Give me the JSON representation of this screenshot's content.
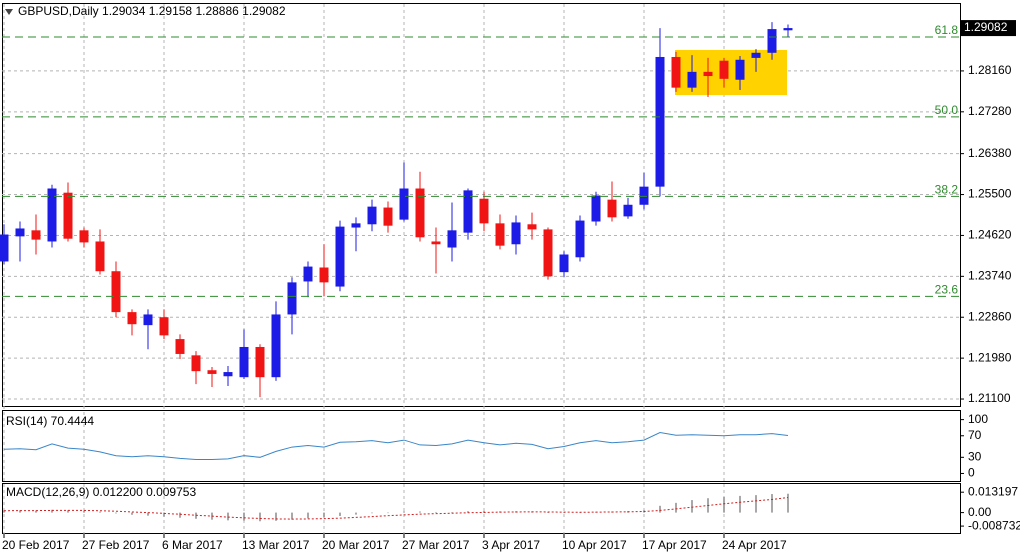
{
  "chart_data": [
    {
      "type": "candlestick",
      "title": "GBPUSD,Daily  1.29034 1.29158 1.28886 1.29082",
      "categories": [
        "20 Feb 2017",
        null,
        null,
        null,
        null,
        "27 Feb 2017",
        null,
        null,
        null,
        null,
        "6 Mar 2017",
        null,
        null,
        null,
        null,
        "13 Mar 2017",
        null,
        null,
        null,
        null,
        "20 Mar 2017",
        null,
        null,
        null,
        null,
        "27 Mar 2017",
        null,
        null,
        null,
        null,
        "3 Apr 2017",
        null,
        null,
        null,
        null,
        "10 Apr 2017",
        null,
        null,
        null,
        null,
        "17 Apr 2017",
        null,
        null,
        null,
        null,
        "24 Apr 2017",
        null,
        null,
        null,
        null
      ],
      "open": [
        1.2406,
        1.246,
        1.2473,
        1.2449,
        1.2554,
        1.2473,
        1.2449,
        1.2385,
        1.2297,
        1.2269,
        1.2286,
        1.2239,
        1.2204,
        1.2172,
        1.2159,
        1.2157,
        1.2222,
        1.2157,
        1.2292,
        1.2363,
        1.2393,
        1.2352,
        1.2479,
        1.2486,
        1.2522,
        1.2496,
        1.2563,
        1.2449,
        1.2436,
        1.2468,
        1.2541,
        1.2488,
        1.2443,
        1.2486,
        1.2475,
        1.2383,
        1.2415,
        1.2492,
        1.2539,
        1.2503,
        1.2528,
        1.2567,
        1.2846,
        1.278,
        1.2814,
        1.2838,
        1.2797,
        1.2844,
        1.2855,
        1.29034
      ],
      "high": [
        1.2486,
        1.2492,
        1.2507,
        1.2571,
        1.2576,
        1.2479,
        1.2475,
        1.2406,
        1.2303,
        1.2303,
        1.2303,
        1.2249,
        1.2213,
        1.2179,
        1.2181,
        1.226,
        1.2228,
        1.232,
        1.2372,
        1.2406,
        1.2443,
        1.2494,
        1.2501,
        1.2539,
        1.2535,
        1.2619,
        1.2599,
        1.2479,
        1.2533,
        1.2563,
        1.2556,
        1.2507,
        1.2505,
        1.2511,
        1.2479,
        1.2428,
        1.2505,
        1.2556,
        1.2578,
        1.2543,
        1.2597,
        1.2908,
        1.2857,
        1.285,
        1.2844,
        1.2844,
        1.2848,
        1.2863,
        1.2921,
        1.29158
      ],
      "low": [
        1.24,
        1.2406,
        1.2421,
        1.2436,
        1.2449,
        1.2436,
        1.2378,
        1.2286,
        1.2247,
        1.2217,
        1.2239,
        1.2196,
        1.2142,
        1.2136,
        1.2138,
        1.2153,
        1.2114,
        1.2149,
        1.2249,
        1.2329,
        1.2331,
        1.2342,
        1.2428,
        1.2471,
        1.2468,
        1.2492,
        1.2449,
        1.238,
        1.2406,
        1.2453,
        1.2471,
        1.2432,
        1.2421,
        1.2453,
        1.2367,
        1.2372,
        1.2406,
        1.2483,
        1.2492,
        1.2498,
        1.2518,
        1.2546,
        1.2771,
        1.2771,
        1.276,
        1.278,
        1.2775,
        1.2814,
        1.284,
        1.28886
      ],
      "close": [
        1.2464,
        1.2477,
        1.2453,
        1.2563,
        1.2455,
        1.2447,
        1.2385,
        1.2297,
        1.2271,
        1.2292,
        1.2247,
        1.2207,
        1.217,
        1.2164,
        1.2168,
        1.2222,
        1.2157,
        1.2292,
        1.2361,
        1.2395,
        1.2361,
        1.2481,
        1.2488,
        1.2524,
        1.2483,
        1.2563,
        1.2458,
        1.2443,
        1.2473,
        1.2559,
        1.2488,
        1.244,
        1.249,
        1.2475,
        1.2374,
        1.2421,
        1.2494,
        1.2548,
        1.2501,
        1.2528,
        1.2567,
        1.2846,
        1.278,
        1.2814,
        1.2805,
        1.2799,
        1.284,
        1.2855,
        1.2906,
        1.29082
      ],
      "up_color": "#1c1ce6",
      "down_color": "#f01414",
      "ylim": [
        1.2095,
        1.296
      ],
      "yticks": [
        {
          "value": 1.2816,
          "label": "1.28160"
        },
        {
          "value": 1.2728,
          "label": "1.27280"
        },
        {
          "value": 1.2638,
          "label": "1.26380"
        },
        {
          "value": 1.255,
          "label": "1.25500"
        },
        {
          "value": 1.2462,
          "label": "1.24620"
        },
        {
          "value": 1.2374,
          "label": "1.23740"
        },
        {
          "value": 1.2286,
          "label": "1.22860"
        },
        {
          "value": 1.2198,
          "label": "1.21980"
        },
        {
          "value": 1.211,
          "label": "1.21100"
        }
      ],
      "grid": true,
      "fib_levels": [
        {
          "label": "61.8",
          "value": 1.2889
        },
        {
          "label": "50.0",
          "value": 1.2717
        },
        {
          "label": "38.2",
          "value": 1.2546
        },
        {
          "label": "23.6",
          "value": 1.2331
        }
      ],
      "fib_color": "#2e8b2e"
    },
    {
      "type": "line",
      "title": "RSI(14) 70.4444",
      "values": [
        45,
        46,
        44,
        55,
        47,
        45,
        40,
        33,
        31,
        33,
        31,
        28,
        26,
        26,
        27,
        33,
        30,
        41,
        49,
        52,
        49,
        58,
        59,
        61,
        57,
        62,
        53,
        52,
        55,
        62,
        57,
        53,
        56,
        54,
        46,
        50,
        57,
        61,
        57,
        59,
        62,
        76,
        71,
        72,
        71,
        70,
        72,
        72,
        74,
        70.4444
      ],
      "color": "#3a86c8",
      "ylim": [
        -14,
        116
      ],
      "yticks": [
        100,
        70,
        30,
        0
      ]
    },
    {
      "type": "macd",
      "title": "MACD(12,26,9) 0.012200 0.009753",
      "values": [
        0.0015,
        0.0015,
        0.0013,
        0.0018,
        0.0015,
        0.0012,
        0.0006,
        -0.0005,
        -0.0014,
        -0.002,
        -0.0026,
        -0.0033,
        -0.004,
        -0.0046,
        -0.005,
        -0.0052,
        -0.0056,
        -0.0053,
        -0.0045,
        -0.0037,
        -0.0032,
        -0.0022,
        -0.0013,
        -0.0004,
        0,
        0.0008,
        0.0007,
        0.0004,
        0.0003,
        0.0009,
        0.001,
        0.0008,
        0.0009,
        0.0008,
        0.0001,
        -0.0003,
        0,
        0.0005,
        0.0007,
        0.001,
        0.0015,
        0.0044,
        0.0063,
        0.0081,
        0.0093,
        0.0101,
        0.0108,
        0.0113,
        0.012,
        0.0122
      ],
      "signal": [
        0.0012,
        0.0013,
        0.0013,
        0.0014,
        0.0014,
        0.0014,
        0.0012,
        0.0009,
        0.0004,
        0,
        -0.0005,
        -0.0011,
        -0.0017,
        -0.0023,
        -0.0029,
        -0.0034,
        -0.0038,
        -0.0041,
        -0.0042,
        -0.0041,
        -0.0039,
        -0.0036,
        -0.0031,
        -0.0026,
        -0.002,
        -0.0015,
        -0.001,
        -0.0007,
        -0.0004,
        -0.0001,
        0.0001,
        0.0003,
        0.0004,
        0.0005,
        0.0004,
        0.0003,
        0.0002,
        0.0003,
        0.0004,
        0.0005,
        0.0007,
        0.0014,
        0.0024,
        0.0035,
        0.0046,
        0.0057,
        0.0067,
        0.0076,
        0.0085,
        0.009753
      ],
      "color": "#a8a8a8",
      "signal_color": "#d02020",
      "ylim": [
        -0.0132,
        0.0185
      ],
      "yticks": [
        0.013197,
        {
          "value": 0,
          "label": "0.00"
        },
        -0.008732
      ]
    }
  ]
}
